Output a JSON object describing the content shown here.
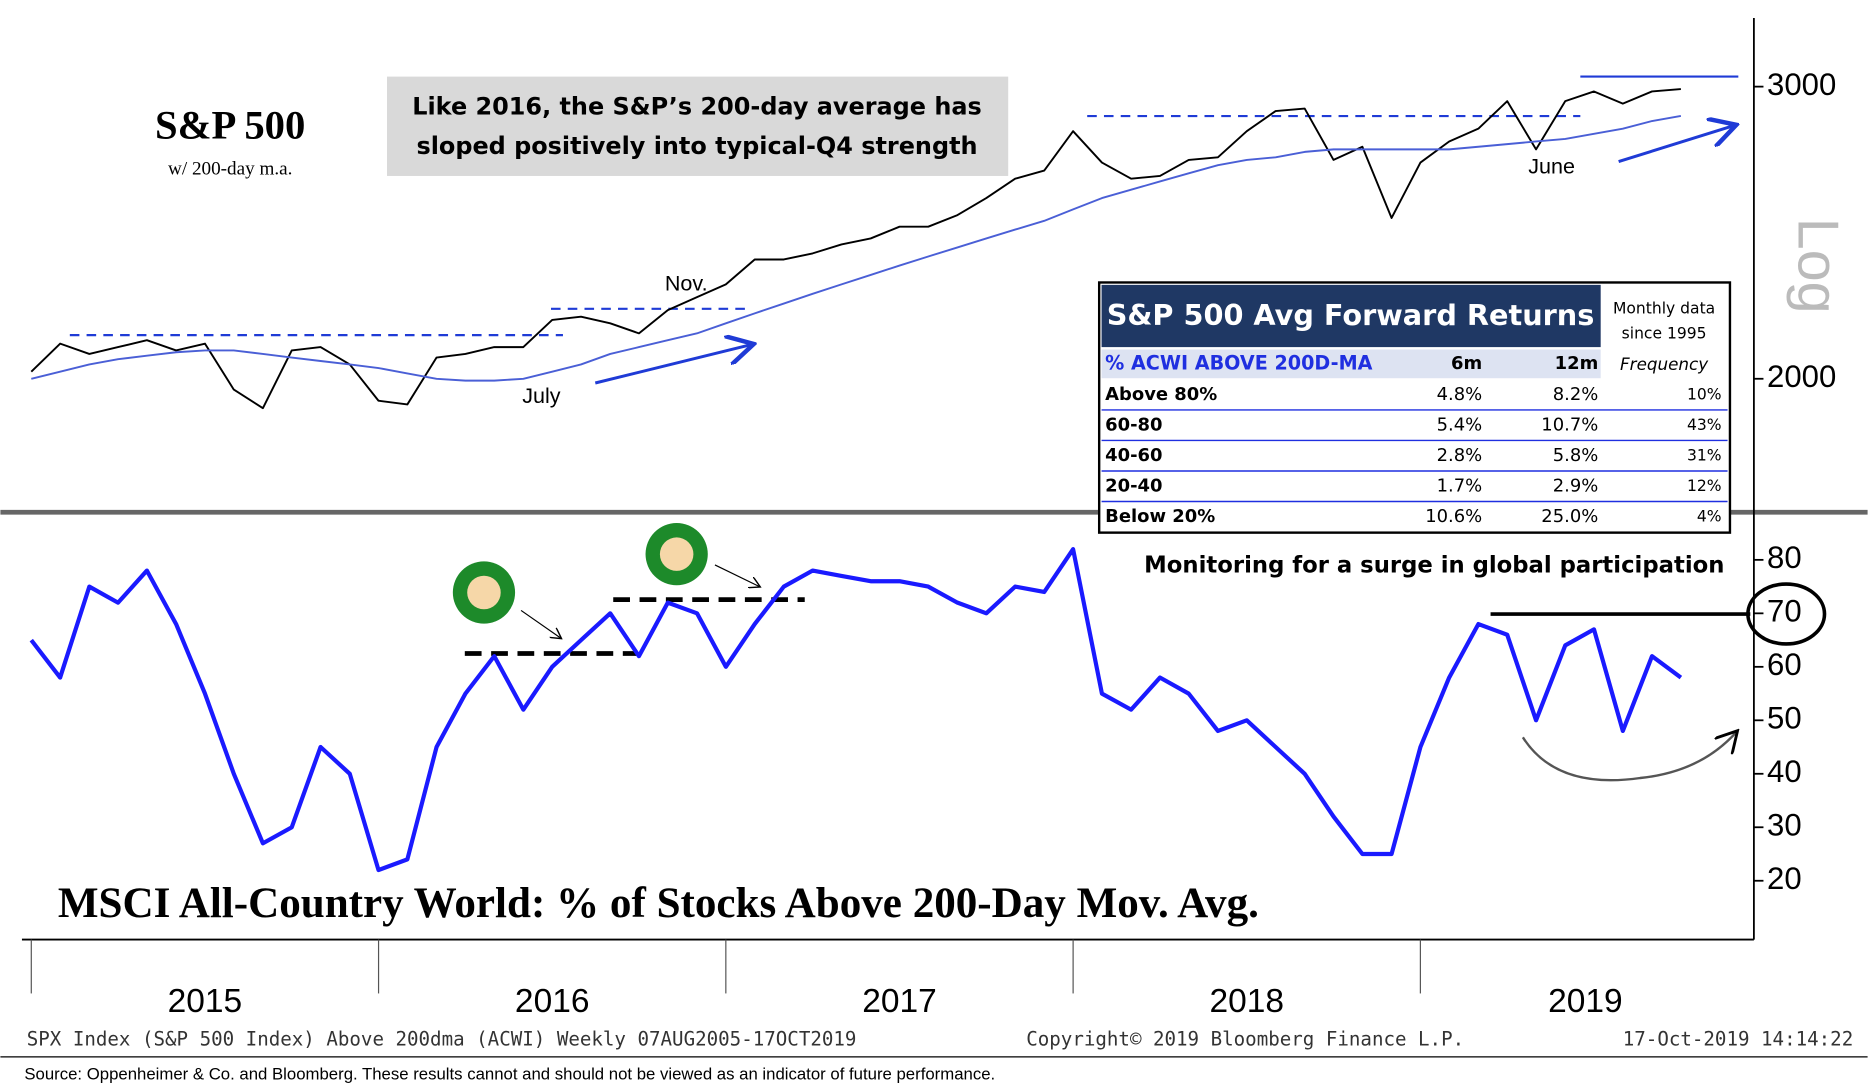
{
  "chart_data": [
    {
      "type": "line",
      "title": "S&P 500",
      "subtitle": "w/ 200-day m.a.",
      "log_scale": true,
      "callout": [
        "Like 2016, the S&P’s 200-day average has",
        "sloped positively into typical-Q4 strength"
      ],
      "annotations": [
        "Nov.",
        "July",
        "June"
      ],
      "axis_note": "Log",
      "xlim": [
        2014.98,
        2019.95
      ],
      "ylim": [
        1670,
        3300
      ],
      "yticks": [
        2000,
        3000
      ],
      "x": [
        2015,
        2015.083,
        2015.167,
        2015.25,
        2015.333,
        2015.417,
        2015.5,
        2015.583,
        2015.667,
        2015.75,
        2015.833,
        2015.917,
        2016,
        2016.083,
        2016.167,
        2016.25,
        2016.333,
        2016.417,
        2016.5,
        2016.583,
        2016.667,
        2016.75,
        2016.833,
        2016.917,
        2017,
        2017.083,
        2017.167,
        2017.25,
        2017.333,
        2017.417,
        2017.5,
        2017.583,
        2017.667,
        2017.75,
        2017.833,
        2017.917,
        2018,
        2018.083,
        2018.167,
        2018.25,
        2018.333,
        2018.417,
        2018.5,
        2018.583,
        2018.667,
        2018.75,
        2018.833,
        2018.917,
        2019,
        2019.083,
        2019.167,
        2019.25,
        2019.333,
        2019.417,
        2019.5,
        2019.583,
        2019.667,
        2019.75
      ],
      "series": [
        {
          "name": "S&P 500",
          "color": "#000000",
          "values": [
            2020,
            2100,
            2070,
            2090,
            2110,
            2080,
            2100,
            1970,
            1920,
            2080,
            2090,
            2040,
            1940,
            1930,
            2060,
            2070,
            2090,
            2090,
            2170,
            2180,
            2160,
            2130,
            2200,
            2240,
            2280,
            2360,
            2360,
            2380,
            2410,
            2430,
            2470,
            2470,
            2510,
            2570,
            2640,
            2670,
            2820,
            2700,
            2640,
            2650,
            2710,
            2720,
            2820,
            2900,
            2910,
            2710,
            2760,
            2500,
            2700,
            2780,
            2830,
            2940,
            2750,
            2940,
            2980,
            2930,
            2980,
            2990
          ]
        },
        {
          "name": "200-day m.a.",
          "color": "#4a5fd6",
          "values": [
            2000,
            2020,
            2040,
            2055,
            2065,
            2075,
            2080,
            2080,
            2070,
            2060,
            2050,
            2040,
            2030,
            2015,
            2000,
            1995,
            1995,
            2000,
            2020,
            2040,
            2070,
            2090,
            2110,
            2130,
            2160,
            2190,
            2220,
            2250,
            2280,
            2310,
            2340,
            2370,
            2400,
            2430,
            2460,
            2490,
            2530,
            2570,
            2600,
            2630,
            2660,
            2690,
            2710,
            2720,
            2740,
            2750,
            2750,
            2750,
            2750,
            2750,
            2760,
            2770,
            2780,
            2790,
            2810,
            2830,
            2860,
            2880
          ]
        }
      ]
    },
    {
      "type": "line",
      "title": "MSCI All-Country World: % of Stocks Above 200-Day Mov. Avg.",
      "annotations": [
        "Monitoring for a surge in global participation"
      ],
      "xlim": [
        2014.98,
        2019.95
      ],
      "ylim": [
        9,
        88
      ],
      "yticks": [
        20,
        30,
        40,
        50,
        60,
        70,
        80
      ],
      "xticks": [
        {
          "value": 2015,
          "label": "2015"
        },
        {
          "value": 2016,
          "label": "2016"
        },
        {
          "value": 2017,
          "label": "2017"
        },
        {
          "value": 2018,
          "label": "2018"
        },
        {
          "value": 2019,
          "label": "2019"
        }
      ],
      "x": [
        2015,
        2015.083,
        2015.167,
        2015.25,
        2015.333,
        2015.417,
        2015.5,
        2015.583,
        2015.667,
        2015.75,
        2015.833,
        2015.917,
        2016,
        2016.083,
        2016.167,
        2016.25,
        2016.333,
        2016.417,
        2016.5,
        2016.583,
        2016.667,
        2016.75,
        2016.833,
        2016.917,
        2017,
        2017.083,
        2017.167,
        2017.25,
        2017.333,
        2017.417,
        2017.5,
        2017.583,
        2017.667,
        2017.75,
        2017.833,
        2017.917,
        2018,
        2018.083,
        2018.167,
        2018.25,
        2018.333,
        2018.417,
        2018.5,
        2018.583,
        2018.667,
        2018.75,
        2018.833,
        2018.917,
        2019,
        2019.083,
        2019.167,
        2019.25,
        2019.333,
        2019.417,
        2019.5,
        2019.583,
        2019.667,
        2019.75
      ],
      "series": [
        {
          "name": "% Above 200dma (ACWI)",
          "color": "#1a1aff",
          "values": [
            65,
            58,
            75,
            72,
            78,
            68,
            55,
            40,
            27,
            30,
            45,
            40,
            22,
            24,
            45,
            55,
            62,
            52,
            60,
            65,
            70,
            62,
            72,
            70,
            60,
            68,
            75,
            78,
            77,
            76,
            76,
            75,
            72,
            70,
            75,
            74,
            82,
            55,
            52,
            58,
            55,
            48,
            50,
            45,
            40,
            32,
            25,
            25,
            45,
            58,
            68,
            66,
            50,
            64,
            67,
            48,
            62,
            58
          ]
        }
      ]
    }
  ],
  "table": {
    "title": "S&P 500 Avg Forward Returns",
    "note": [
      "Monthly data",
      "since 1995"
    ],
    "columns": [
      "% ACWI ABOVE 200D-MA",
      "6m",
      "12m",
      "Frequency"
    ],
    "rows": [
      [
        "Above 80%",
        "4.8%",
        "8.2%",
        "10%"
      ],
      [
        "60-80",
        "5.4%",
        "10.7%",
        "43%"
      ],
      [
        "40-60",
        "2.8%",
        "5.8%",
        "31%"
      ],
      [
        "20-40",
        "1.7%",
        "2.9%",
        "12%"
      ],
      [
        "Below 20%",
        "10.6%",
        "25.0%",
        "4%"
      ]
    ]
  },
  "footer": {
    "left": "SPX Index (S&P 500 Index) Above 200dma (ACWI)  Weekly 07AUG2005-17OCT2019",
    "middle": "Copyright© 2019 Bloomberg Finance L.P.",
    "right": "17-Oct-2019 14:14:22",
    "source": "Source:  Oppenheimer & Co. and Bloomberg.  These results cannot and should not be viewed as an indicator of future performance."
  }
}
